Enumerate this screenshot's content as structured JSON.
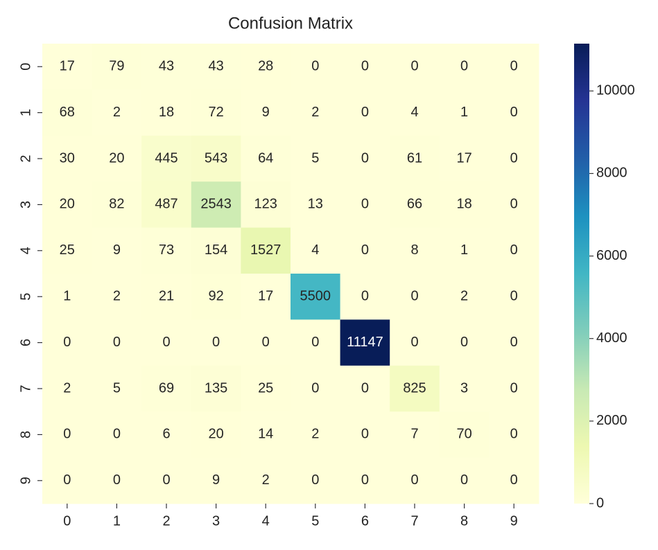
{
  "chart_data": {
    "type": "heatmap",
    "title": "Confusion Matrix",
    "x_categories": [
      "0",
      "1",
      "2",
      "3",
      "4",
      "5",
      "6",
      "7",
      "8",
      "9"
    ],
    "y_categories": [
      "0",
      "1",
      "2",
      "3",
      "4",
      "5",
      "6",
      "7",
      "8",
      "9"
    ],
    "values": [
      [
        17,
        79,
        43,
        43,
        28,
        0,
        0,
        0,
        0,
        0
      ],
      [
        68,
        2,
        18,
        72,
        9,
        2,
        0,
        4,
        1,
        0
      ],
      [
        30,
        20,
        445,
        543,
        64,
        5,
        0,
        61,
        17,
        0
      ],
      [
        20,
        82,
        487,
        2543,
        123,
        13,
        0,
        66,
        18,
        0
      ],
      [
        25,
        9,
        73,
        154,
        1527,
        4,
        0,
        8,
        1,
        0
      ],
      [
        1,
        2,
        21,
        92,
        17,
        5500,
        0,
        0,
        2,
        0
      ],
      [
        0,
        0,
        0,
        0,
        0,
        0,
        11147,
        0,
        0,
        0
      ],
      [
        2,
        5,
        69,
        135,
        25,
        0,
        0,
        825,
        3,
        0
      ],
      [
        0,
        0,
        6,
        20,
        14,
        2,
        0,
        7,
        70,
        0
      ],
      [
        0,
        0,
        0,
        9,
        2,
        0,
        0,
        0,
        0,
        0
      ]
    ],
    "colormap": "YlGnBu",
    "clim": [
      0,
      11147
    ],
    "cticks": [
      0,
      2000,
      4000,
      6000,
      8000,
      10000
    ]
  }
}
